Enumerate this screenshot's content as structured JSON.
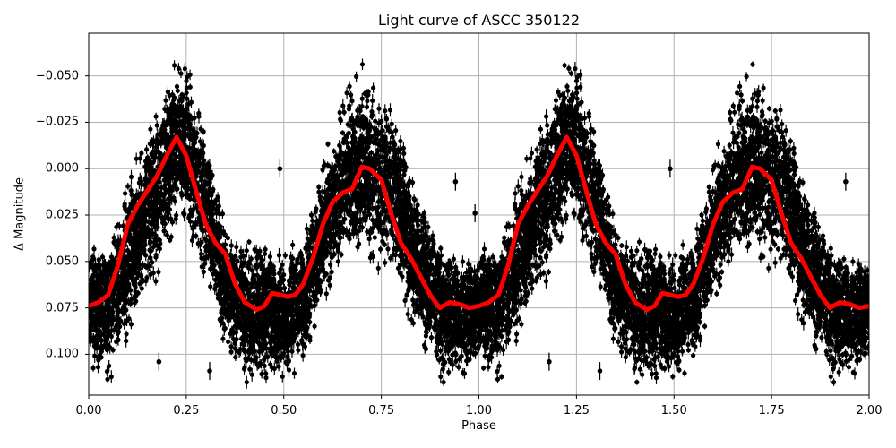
{
  "chart_data": {
    "type": "scatter",
    "title": "Light curve of ASCC 350122",
    "xlabel": "Phase",
    "ylabel": "Δ Magnitude",
    "xlim": [
      0.0,
      2.0
    ],
    "ylim": [
      0.122,
      -0.073
    ],
    "y_inverted": true,
    "grid": true,
    "legend": null,
    "xticks": [
      0.0,
      0.25,
      0.5,
      0.75,
      1.0,
      1.25,
      1.5,
      1.75,
      2.0
    ],
    "xtick_labels": [
      "0.00",
      "0.25",
      "0.50",
      "0.75",
      "1.00",
      "1.25",
      "1.50",
      "1.75",
      "2.00"
    ],
    "yticks": [
      -0.05,
      -0.025,
      0.0,
      0.025,
      0.05,
      0.075,
      0.1
    ],
    "ytick_labels": [
      "−0.050",
      "−0.025",
      "0.000",
      "0.025",
      "0.050",
      "0.075",
      "0.100"
    ],
    "series": [
      {
        "name": "observations",
        "kind": "errorbar-scatter",
        "color": "#000000",
        "description": "Dense cloud of black points with vertical error bars, phase-folded and repeated over two cycles; spread approx ±0.035 mag around the binned curve",
        "envelope_phase": [
          0.0,
          0.05,
          0.1,
          0.15,
          0.2,
          0.225,
          0.25,
          0.3,
          0.35,
          0.4,
          0.45,
          0.5,
          0.55,
          0.6,
          0.65,
          0.7,
          0.75,
          0.8,
          0.85,
          0.9,
          0.95,
          1.0
        ],
        "envelope_upper": [
          0.04,
          0.03,
          -0.005,
          -0.03,
          -0.06,
          -0.07,
          -0.068,
          -0.03,
          0.03,
          0.035,
          0.035,
          0.04,
          0.03,
          -0.01,
          -0.045,
          -0.06,
          -0.055,
          -0.03,
          0.01,
          0.03,
          0.04,
          0.04
        ],
        "envelope_lower": [
          0.11,
          0.12,
          0.1,
          0.075,
          0.06,
          0.04,
          0.04,
          0.07,
          0.1,
          0.12,
          0.122,
          0.122,
          0.11,
          0.08,
          0.06,
          0.06,
          0.06,
          0.08,
          0.1,
          0.12,
          0.122,
          0.11
        ]
      },
      {
        "name": "binned mean",
        "kind": "line",
        "color": "#ff0000",
        "linewidth": 5,
        "x": [
          0.0,
          0.025,
          0.05,
          0.075,
          0.1,
          0.125,
          0.15,
          0.175,
          0.2,
          0.225,
          0.25,
          0.275,
          0.3,
          0.325,
          0.35,
          0.375,
          0.4,
          0.43,
          0.45,
          0.47,
          0.49,
          0.51,
          0.53,
          0.55,
          0.575,
          0.6,
          0.625,
          0.65,
          0.675,
          0.7,
          0.72,
          0.75,
          0.775,
          0.8,
          0.825,
          0.85,
          0.875,
          0.9,
          0.925,
          0.95,
          0.975,
          1.0,
          1.025,
          1.05,
          1.075,
          1.1,
          1.125,
          1.15,
          1.175,
          1.2,
          1.225,
          1.25,
          1.275,
          1.3,
          1.325,
          1.35,
          1.375,
          1.4,
          1.43,
          1.45,
          1.47,
          1.49,
          1.51,
          1.53,
          1.55,
          1.575,
          1.6,
          1.625,
          1.65,
          1.675,
          1.7,
          1.72,
          1.75,
          1.775,
          1.8,
          1.825,
          1.85,
          1.875,
          1.9,
          1.925,
          1.95,
          1.975,
          2.0
        ],
        "y": [
          0.074,
          0.072,
          0.068,
          0.052,
          0.03,
          0.02,
          0.012,
          0.004,
          -0.007,
          -0.017,
          -0.007,
          0.012,
          0.03,
          0.04,
          0.046,
          0.062,
          0.072,
          0.076,
          0.074,
          0.067,
          0.068,
          0.069,
          0.068,
          0.062,
          0.048,
          0.03,
          0.018,
          0.013,
          0.011,
          -0.001,
          0.0,
          0.006,
          0.024,
          0.04,
          0.048,
          0.058,
          0.068,
          0.075,
          0.072,
          0.073,
          0.075,
          0.074,
          0.072,
          0.068,
          0.052,
          0.03,
          0.02,
          0.012,
          0.004,
          -0.007,
          -0.017,
          -0.007,
          0.012,
          0.03,
          0.04,
          0.046,
          0.062,
          0.072,
          0.076,
          0.074,
          0.067,
          0.068,
          0.069,
          0.068,
          0.062,
          0.048,
          0.03,
          0.018,
          0.013,
          0.011,
          -0.001,
          0.0,
          0.006,
          0.024,
          0.04,
          0.048,
          0.058,
          0.068,
          0.075,
          0.072,
          0.073,
          0.075,
          0.074
        ]
      }
    ],
    "outliers": [
      {
        "x": 0.18,
        "y": 0.104
      },
      {
        "x": 0.31,
        "y": 0.109
      },
      {
        "x": 0.49,
        "y": 0.0
      },
      {
        "x": 0.94,
        "y": 0.007
      },
      {
        "x": 0.99,
        "y": 0.024
      },
      {
        "x": 1.18,
        "y": 0.104
      },
      {
        "x": 1.31,
        "y": 0.109
      },
      {
        "x": 1.49,
        "y": 0.0
      },
      {
        "x": 1.94,
        "y": 0.007
      }
    ],
    "colors": {
      "points": "#000000",
      "curve": "#ff0000",
      "grid": "#b0b0b0"
    }
  }
}
